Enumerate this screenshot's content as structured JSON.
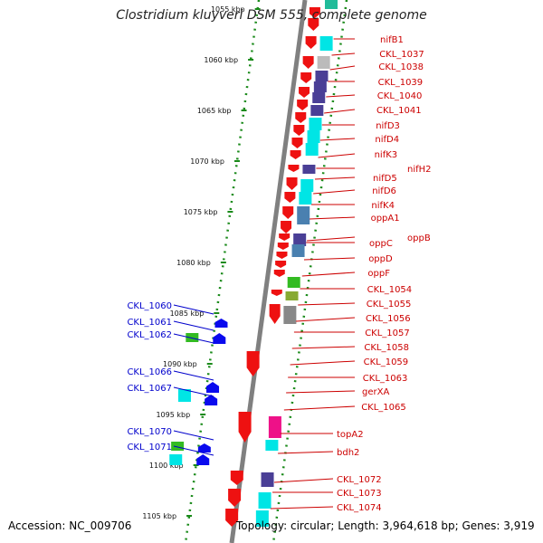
{
  "title": "Clostridium kluyveri DSM 555, complete genome",
  "footer": {
    "accession": "Accession: NC_009706",
    "info": "Topology: circular; Length: 3,964,618 bp; Genes: 3,919"
  },
  "chart_data": {
    "type": "genome-map",
    "ticks": [
      "1055 kbp",
      "1060 kbp",
      "1065 kbp",
      "1070 kbp",
      "1075 kbp",
      "1080 kbp",
      "1085 kbp",
      "1090 kbp",
      "1095 kbp",
      "1100 kbp",
      "1105 kbp"
    ],
    "tick_positions_kbp": [
      1055,
      1060,
      1065,
      1070,
      1075,
      1080,
      1085,
      1090,
      1095,
      1100,
      1105
    ],
    "forward_strand_label_color": "#cc0000",
    "reverse_strand_label_color": "#0000cc",
    "forward_genes": [
      "nifB1",
      "CKL_1037",
      "CKL_1038",
      "CKL_1039",
      "CKL_1040",
      "CKL_1041",
      "nifD3",
      "nifD4",
      "nifK3",
      "nifH2",
      "nifD5",
      "nifD6",
      "nifK4",
      "oppA1",
      "oppB",
      "oppC",
      "oppD",
      "oppF",
      "CKL_1054",
      "CKL_1055",
      "CKL_1056",
      "CKL_1057",
      "CKL_1058",
      "CKL_1059",
      "CKL_1063",
      "gerXA",
      "CKL_1065",
      "topA2",
      "bdh2",
      "CKL_1072",
      "CKL_1073",
      "CKL_1074"
    ],
    "reverse_genes": [
      "CKL_1060",
      "CKL_1061",
      "CKL_1062",
      "CKL_1066",
      "CKL_1067",
      "CKL_1070",
      "CKL_1071"
    ],
    "colors": {
      "forward_arrow": "#ee1111",
      "reverse_arrow": "#0a0aee",
      "backbone": "#808080",
      "dotted_track": "#1a8a1a",
      "cyan": "#00e5e5",
      "navy": "#4a3f96",
      "steelblue": "#4a80b0",
      "green": "#33bb22",
      "olive": "#88aa33",
      "magenta": "#ee1188",
      "gray": "#888888",
      "lightgray": "#bbbbbb",
      "teal": "#22bb99"
    }
  }
}
